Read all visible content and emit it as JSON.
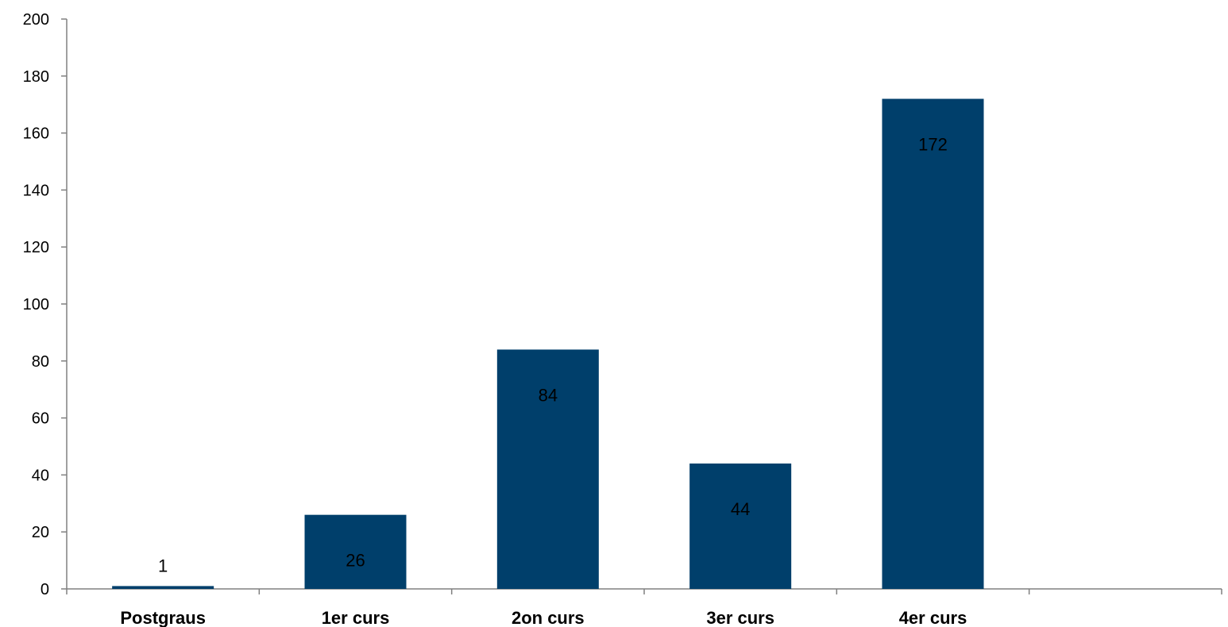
{
  "chart_data": {
    "type": "bar",
    "categories": [
      "Postgraus",
      "1er curs",
      "2on curs",
      "3er curs",
      "4er curs",
      ""
    ],
    "values": [
      1,
      26,
      84,
      44,
      172,
      null
    ],
    "data_labels": [
      "1",
      "26",
      "84",
      "44",
      "172",
      ""
    ],
    "title": "",
    "xlabel": "",
    "ylabel": "",
    "ylim": [
      0,
      200
    ],
    "yticks": [
      0,
      20,
      40,
      60,
      80,
      100,
      120,
      140,
      160,
      180,
      200
    ],
    "ytick_labels": [
      "0",
      "20",
      "40",
      "60",
      "80",
      "100",
      "120",
      "140",
      "160",
      "180",
      "200"
    ],
    "grid": false,
    "legend": "none",
    "colors": {
      "bar": "#003f6b",
      "axis": "#808080",
      "text": "#000000"
    }
  }
}
